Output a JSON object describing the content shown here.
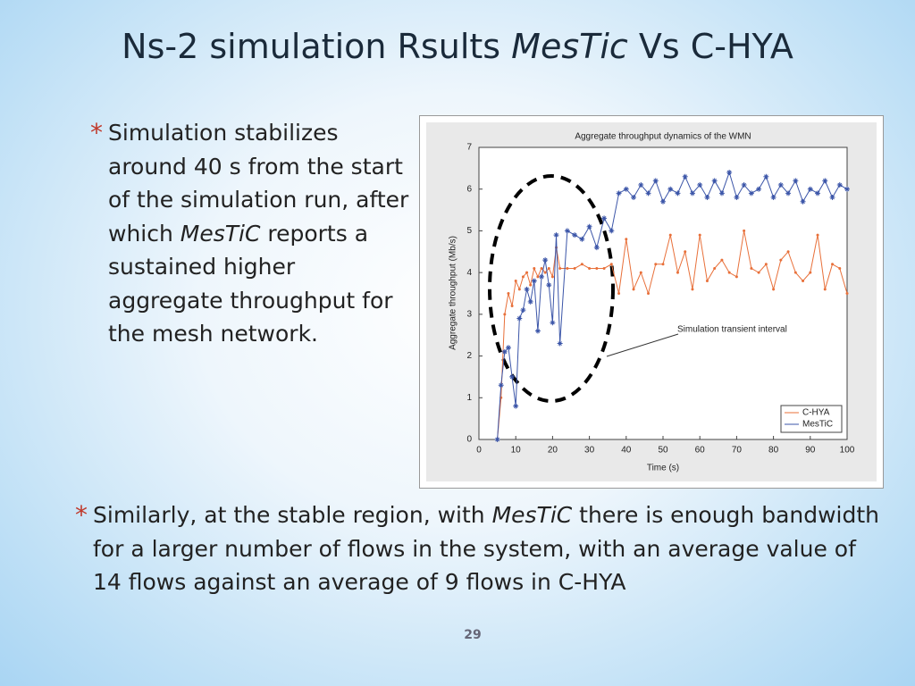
{
  "title": {
    "segments": [
      {
        "text": "Ns-2 simulation Rsults ",
        "italic": false
      },
      {
        "text": "MesTic",
        "italic": true
      },
      {
        "text": " Vs C-HYA",
        "italic": false
      }
    ]
  },
  "bullets": [
    {
      "marker": "*",
      "segments": [
        {
          "text": "Simulation stabilizes around 40 s from the start of the simulation run, after which ",
          "italic": false
        },
        {
          "text": "MesTiC",
          "italic": true
        },
        {
          "text": " reports a sustained higher aggregate throughput for the mesh network.",
          "italic": false
        }
      ]
    },
    {
      "marker": "*",
      "segments": [
        {
          "text": "Similarly, at the stable region, with ",
          "italic": false
        },
        {
          "text": "MesTiC",
          "italic": true
        },
        {
          "text": " there is enough bandwidth for a larger number of flows in the system, with an average value of 14 flows against an average of 9 flows in C-HYA",
          "italic": false
        }
      ]
    }
  ],
  "page_number": "29",
  "chart_data": {
    "type": "line",
    "title": "Aggregate throughput dynamics of the WMN",
    "x_label": "Time (s)",
    "y_label": "Aggregate throughput (Mb/s)",
    "annotation": "Simulation transient interval",
    "legend": "lower right",
    "xlim": [
      0,
      100
    ],
    "xticks": [
      0,
      10,
      20,
      30,
      40,
      50,
      60,
      70,
      80,
      90,
      100
    ],
    "ylim": [
      0,
      7
    ],
    "yticks": [
      0,
      1,
      2,
      3,
      4,
      5,
      6,
      7
    ],
    "x": [
      5,
      6,
      7,
      8,
      9,
      10,
      11,
      12,
      13,
      14,
      15,
      16,
      17,
      18,
      19,
      20,
      21,
      22,
      24,
      26,
      28,
      30,
      32,
      34,
      36,
      38,
      40,
      42,
      44,
      46,
      48,
      50,
      52,
      54,
      56,
      58,
      60,
      62,
      64,
      66,
      68,
      70,
      72,
      74,
      76,
      78,
      80,
      82,
      84,
      86,
      88,
      90,
      92,
      94,
      96,
      98,
      100
    ],
    "series": [
      {
        "name": "C-HYA",
        "color": "#e8703a",
        "marker": "dot",
        "values": [
          0,
          1,
          3,
          3.5,
          3.2,
          3.8,
          3.6,
          3.9,
          4.0,
          3.7,
          4.1,
          3.9,
          4.1,
          4.0,
          4.1,
          3.9,
          4.6,
          4.1,
          4.1,
          4.1,
          4.2,
          4.1,
          4.1,
          4.1,
          4.2,
          3.5,
          4.8,
          3.6,
          4.0,
          3.5,
          4.2,
          4.2,
          4.9,
          4.0,
          4.5,
          3.6,
          4.9,
          3.8,
          4.1,
          4.3,
          4.0,
          3.9,
          5.0,
          4.1,
          4.0,
          4.2,
          3.6,
          4.3,
          4.5,
          4.0,
          3.8,
          4.0,
          4.9,
          3.6,
          4.2,
          4.1,
          3.5
        ]
      },
      {
        "name": "MesTiC",
        "color": "#3b55a8",
        "marker": "star",
        "values": [
          0,
          1.3,
          2.1,
          2.2,
          1.5,
          0.8,
          2.9,
          3.1,
          3.6,
          3.3,
          3.8,
          2.6,
          3.9,
          4.3,
          3.7,
          2.8,
          4.9,
          2.3,
          5.0,
          4.9,
          4.8,
          5.1,
          4.6,
          5.3,
          5.0,
          5.9,
          6.0,
          5.8,
          6.1,
          5.9,
          6.2,
          5.7,
          6.0,
          5.9,
          6.3,
          5.9,
          6.1,
          5.8,
          6.2,
          5.9,
          6.4,
          5.8,
          6.1,
          5.9,
          6.0,
          6.3,
          5.8,
          6.1,
          5.9,
          6.2,
          5.7,
          6.0,
          5.9,
          6.2,
          5.8,
          6.1,
          6.0
        ]
      }
    ]
  }
}
